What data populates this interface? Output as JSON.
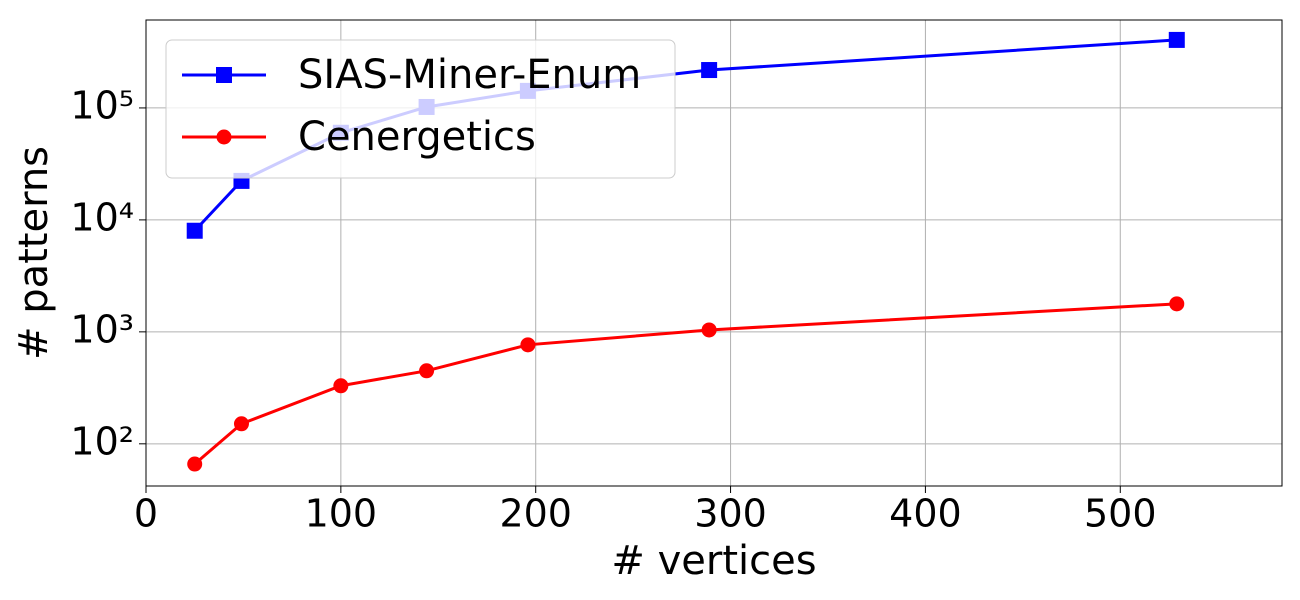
{
  "chart_data": {
    "type": "line",
    "xlabel": "# vertices",
    "ylabel": "# patterns",
    "x": [
      25,
      49,
      100,
      144,
      196,
      289,
      529
    ],
    "series": [
      {
        "name": "SIAS-Miner-Enum",
        "color": "#0000ff",
        "marker": "square",
        "values": [
          8000,
          22300,
          60000,
          102000,
          142000,
          218000,
          405000
        ]
      },
      {
        "name": "Cenergetics",
        "color": "#ff0000",
        "marker": "circle",
        "values": [
          66,
          151,
          330,
          449,
          766,
          1040,
          1780
        ]
      }
    ],
    "xlim": [
      0,
      583
    ],
    "ylim": [
      42,
      610000
    ],
    "xticks": [
      0,
      100,
      200,
      300,
      400,
      500
    ],
    "yticks": [
      {
        "value": 100,
        "label": "10²"
      },
      {
        "value": 1000,
        "label": "10³"
      },
      {
        "value": 10000,
        "label": "10⁴"
      },
      {
        "value": 100000,
        "label": "10⁵"
      }
    ],
    "log_y": true,
    "grid": true,
    "legend": "upper left"
  }
}
